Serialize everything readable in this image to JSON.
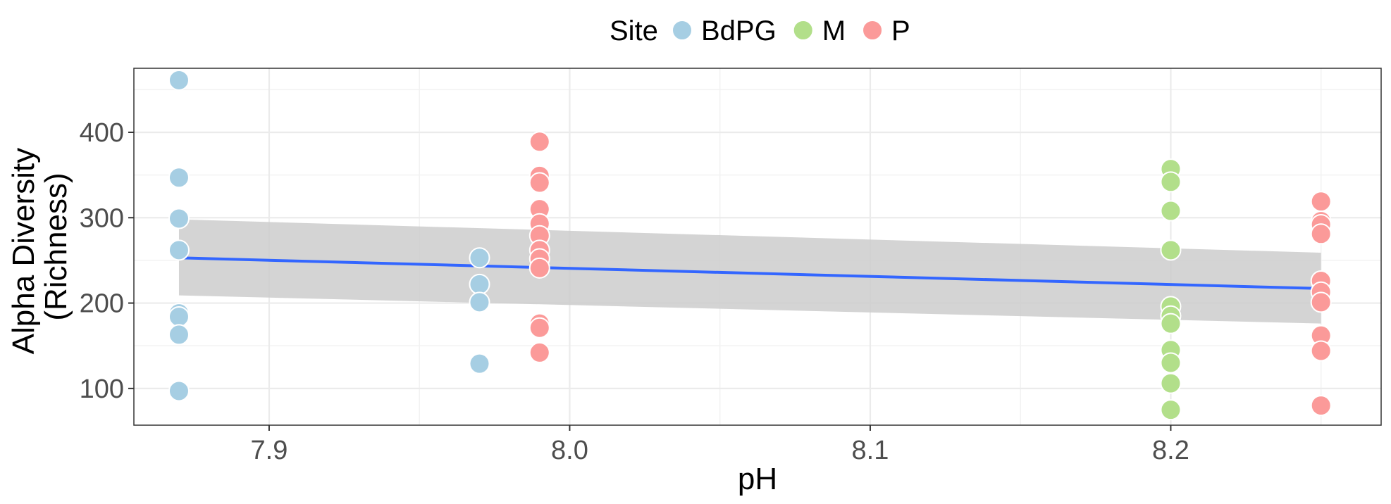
{
  "chart_data": {
    "type": "scatter",
    "title": "",
    "xlabel": "pH",
    "ylabel_lines": [
      "Alpha Diversity",
      "(Richness)"
    ],
    "xlim": [
      7.855,
      8.27
    ],
    "ylim": [
      57,
      475
    ],
    "x_ticks": [
      7.9,
      8.0,
      8.1,
      8.2
    ],
    "x_tick_labels": [
      "7.9",
      "8.0",
      "8.1",
      "8.2"
    ],
    "y_ticks": [
      100,
      200,
      300,
      400
    ],
    "y_tick_labels": [
      "100",
      "200",
      "300",
      "400"
    ],
    "grid": true,
    "legend": {
      "title": "Site",
      "position": "top",
      "entries": [
        "BdPG",
        "M",
        "P"
      ]
    },
    "colors": {
      "BdPG": "#a6cee3",
      "M": "#b2df8a",
      "P": "#fb9a99",
      "fit": "#3366ff",
      "ribbon": "#cccccc"
    },
    "series": [
      {
        "name": "BdPG",
        "points": [
          [
            7.87,
            461
          ],
          [
            7.87,
            347
          ],
          [
            7.87,
            299
          ],
          [
            7.87,
            262
          ],
          [
            7.87,
            188
          ],
          [
            7.87,
            184
          ],
          [
            7.87,
            163
          ],
          [
            7.87,
            97
          ],
          [
            7.97,
            253
          ],
          [
            7.97,
            222
          ],
          [
            7.97,
            201
          ],
          [
            7.97,
            129
          ]
        ]
      },
      {
        "name": "M",
        "points": [
          [
            8.2,
            357
          ],
          [
            8.2,
            342
          ],
          [
            8.2,
            308
          ],
          [
            8.2,
            262
          ],
          [
            8.2,
            196
          ],
          [
            8.2,
            185
          ],
          [
            8.2,
            176
          ],
          [
            8.2,
            145
          ],
          [
            8.2,
            130
          ],
          [
            8.2,
            106
          ],
          [
            8.2,
            75
          ]
        ]
      },
      {
        "name": "P",
        "points": [
          [
            7.99,
            389
          ],
          [
            7.99,
            349
          ],
          [
            7.99,
            341
          ],
          [
            7.99,
            310
          ],
          [
            7.99,
            293
          ],
          [
            7.99,
            279
          ],
          [
            7.99,
            262
          ],
          [
            7.99,
            252
          ],
          [
            7.99,
            241
          ],
          [
            7.99,
            176
          ],
          [
            7.99,
            171
          ],
          [
            7.99,
            142
          ],
          [
            8.25,
            319
          ],
          [
            8.25,
            296
          ],
          [
            8.25,
            292
          ],
          [
            8.25,
            281
          ],
          [
            8.25,
            226
          ],
          [
            8.25,
            213
          ],
          [
            8.25,
            201
          ],
          [
            8.25,
            162
          ],
          [
            8.25,
            144
          ],
          [
            8.25,
            80
          ]
        ]
      }
    ],
    "trend": {
      "method": "linear",
      "x": [
        7.87,
        8.25
      ],
      "y": [
        253,
        217
      ],
      "ci_lower": [
        209,
        176
      ],
      "ci_upper": [
        298,
        259
      ]
    }
  }
}
